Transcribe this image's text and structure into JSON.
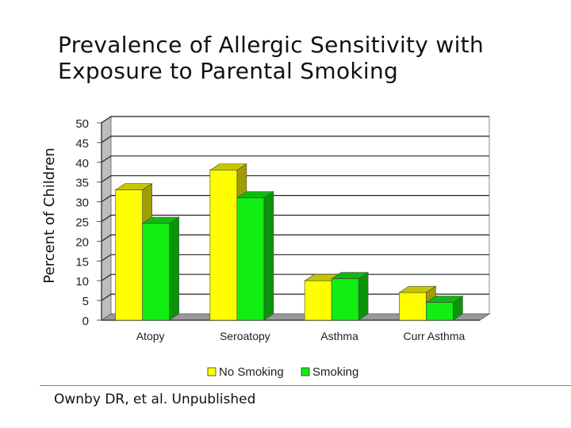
{
  "slide": {
    "title_lines": [
      "Prevalence of Allergic Sensitivity with",
      "Exposure to Parental Smoking"
    ],
    "source": "Ownby DR, et al. Unpublished"
  },
  "chart_data": {
    "type": "bar",
    "ylabel": "Percent of Children",
    "categories": [
      "Atopy",
      "Seroatopy",
      "Asthma",
      "Curr Asthma"
    ],
    "yticks": [
      0,
      5,
      10,
      15,
      20,
      25,
      30,
      35,
      40,
      45,
      50
    ],
    "ylim": [
      0,
      50
    ],
    "grid": true,
    "legend_position": "bottom",
    "series": [
      {
        "name": "No Smoking",
        "values": [
          33,
          38,
          10,
          7
        ],
        "color": "#ffff00"
      },
      {
        "name": "Smoking",
        "values": [
          24.5,
          31,
          10.5,
          4.5
        ],
        "color": "#11ee11"
      }
    ]
  }
}
